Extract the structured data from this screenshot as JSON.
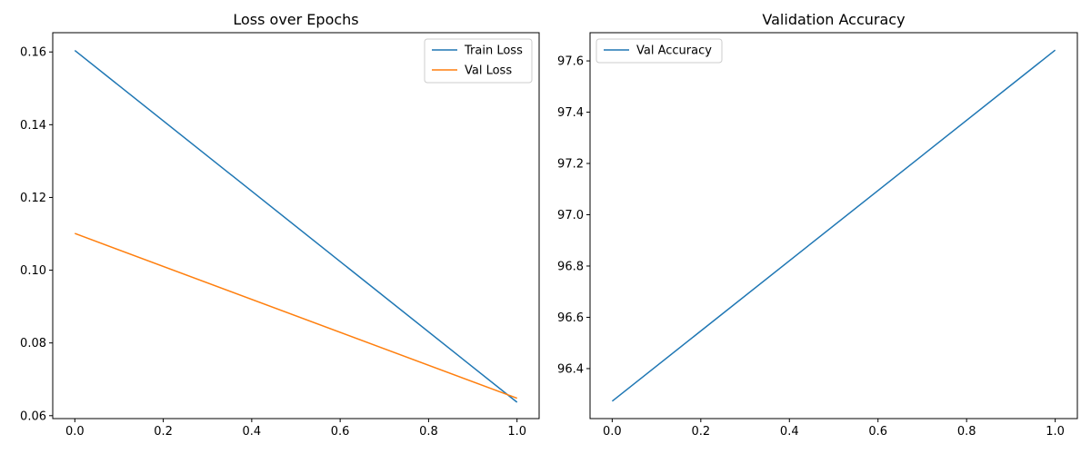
{
  "colors": {
    "blue": "#1f77b4",
    "orange": "#ff7f0e"
  },
  "chart_data": [
    {
      "type": "line",
      "title": "Loss over Epochs",
      "xlabel": "",
      "ylabel": "",
      "x": [
        0.0,
        1.0
      ],
      "xlim": [
        -0.05,
        1.05
      ],
      "ylim": [
        0.0592,
        0.1653
      ],
      "xticks": [
        0.0,
        0.2,
        0.4,
        0.6,
        0.8,
        1.0
      ],
      "xtick_labels": [
        "0.0",
        "0.2",
        "0.4",
        "0.6",
        "0.8",
        "1.0"
      ],
      "yticks": [
        0.06,
        0.08,
        0.1,
        0.12,
        0.14,
        0.16
      ],
      "ytick_labels": [
        "0.06",
        "0.08",
        "0.10",
        "0.12",
        "0.14",
        "0.16"
      ],
      "grid": false,
      "legend_position": "top-right",
      "series": [
        {
          "name": "Train Loss",
          "color": "#1f77b4",
          "values": [
            0.1604,
            0.0637
          ]
        },
        {
          "name": "Val Loss",
          "color": "#ff7f0e",
          "values": [
            0.1101,
            0.0648
          ]
        }
      ]
    },
    {
      "type": "line",
      "title": "Validation Accuracy",
      "xlabel": "",
      "ylabel": "",
      "x": [
        0.0,
        1.0
      ],
      "xlim": [
        -0.05,
        1.05
      ],
      "ylim": [
        96.205,
        97.71
      ],
      "xticks": [
        0.0,
        0.2,
        0.4,
        0.6,
        0.8,
        1.0
      ],
      "xtick_labels": [
        "0.0",
        "0.2",
        "0.4",
        "0.6",
        "0.8",
        "1.0"
      ],
      "yticks": [
        96.4,
        96.6,
        96.8,
        97.0,
        97.2,
        97.4,
        97.6
      ],
      "ytick_labels": [
        "96.4",
        "96.6",
        "96.8",
        "97.0",
        "97.2",
        "97.4",
        "97.6"
      ],
      "grid": false,
      "legend_position": "top-left",
      "series": [
        {
          "name": "Val Accuracy",
          "color": "#1f77b4",
          "values": [
            96.273,
            97.642
          ]
        }
      ]
    }
  ]
}
